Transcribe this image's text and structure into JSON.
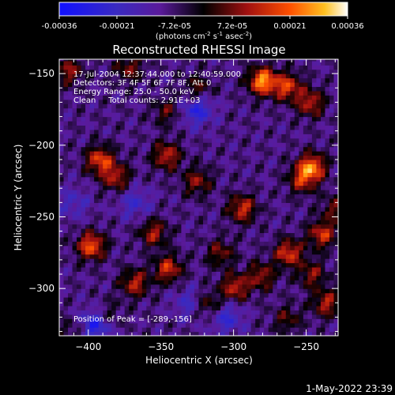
{
  "colorbar": {
    "ticks": [
      "-0.00036",
      "-0.00021",
      "-7.2e-05",
      "7.2e-05",
      "0.00021",
      "0.00036"
    ],
    "units_label": "(photons cm",
    "units_sup1": "-2",
    "units_mid": " s",
    "units_sup2": "-1",
    "units_mid2": " asec",
    "units_sup3": "-2",
    "units_end": ")"
  },
  "chart_data": {
    "type": "heatmap",
    "title": "Reconstructed RHESSI Image",
    "xlabel": "Heliocentric X (arcsec)",
    "ylabel": "Heliocentric Y (arcsec)",
    "xlim": [
      -420,
      -228
    ],
    "ylim": [
      -333,
      -140
    ],
    "xticks": [
      -400,
      -350,
      -300,
      -250
    ],
    "yticks": [
      -150,
      -200,
      -250,
      -300
    ],
    "color_range": [
      -0.00036,
      0.00036
    ],
    "colormap": "blue-purple-black-red-orange-yellow-white",
    "hot_spots": [
      {
        "x": -280,
        "y": -155,
        "v": 0.00036
      },
      {
        "x": -263,
        "y": -159,
        "v": 0.00026
      },
      {
        "x": -247,
        "y": -170,
        "v": 0.00022
      },
      {
        "x": -246,
        "y": -215,
        "v": 0.00032
      },
      {
        "x": -392,
        "y": -210,
        "v": 0.00027
      },
      {
        "x": -381,
        "y": -222,
        "v": 0.00021
      },
      {
        "x": -398,
        "y": -270,
        "v": 0.0003
      },
      {
        "x": -346,
        "y": -207,
        "v": 0.00023
      },
      {
        "x": -325,
        "y": -225,
        "v": 0.00018
      },
      {
        "x": -294,
        "y": -244,
        "v": 0.00024
      },
      {
        "x": -355,
        "y": -261,
        "v": 0.0002
      },
      {
        "x": -345,
        "y": -286,
        "v": 0.00024
      },
      {
        "x": -368,
        "y": -296,
        "v": 0.00022
      },
      {
        "x": -309,
        "y": -275,
        "v": 0.00016
      },
      {
        "x": -299,
        "y": -299,
        "v": 0.00023
      },
      {
        "x": -281,
        "y": -291,
        "v": 0.00019
      },
      {
        "x": -262,
        "y": -275,
        "v": 0.00026
      },
      {
        "x": -239,
        "y": -262,
        "v": 0.00024
      },
      {
        "x": -236,
        "y": -310,
        "v": 0.00021
      },
      {
        "x": -413,
        "y": -148,
        "v": 0.00018
      },
      {
        "x": -372,
        "y": -146,
        "v": 0.00016
      },
      {
        "x": -346,
        "y": -176,
        "v": 0.00013
      },
      {
        "x": -325,
        "y": -160,
        "v": 0.00014
      },
      {
        "x": -253,
        "y": -224,
        "v": 0.0002
      },
      {
        "x": -230,
        "y": -244,
        "v": 0.00014
      },
      {
        "x": -318,
        "y": -311,
        "v": 0.00016
      },
      {
        "x": -263,
        "y": -321,
        "v": 0.00013
      },
      {
        "x": -246,
        "y": -290,
        "v": 0.00017
      },
      {
        "x": -411,
        "y": -330,
        "v": 9e-05
      },
      {
        "x": -387,
        "y": -318,
        "v": 0.00011
      }
    ],
    "cold_spots": [
      {
        "x": -395,
        "y": -325,
        "v": -0.00022
      },
      {
        "x": -305,
        "y": -320,
        "v": -0.00015
      },
      {
        "x": -325,
        "y": -175,
        "v": -0.00018
      },
      {
        "x": -330,
        "y": -310,
        "v": -0.00012
      },
      {
        "x": -410,
        "y": -240,
        "v": -0.0001
      },
      {
        "x": -368,
        "y": -240,
        "v": -0.00012
      }
    ]
  },
  "annotations": {
    "line1": "17-Jul-2004 12:37:44.000 to 12:40:59.000",
    "line2": "Detectors: 3F 4F 5F 6F 7F 8F, Att 0",
    "line3": "Energy Range: 25.0 - 50.0 keV",
    "line4": "Clean     Total counts: 2.91E+03",
    "peak": "Position of Peak = [-289,-156]"
  },
  "footer": {
    "timestamp": "1-May-2022 23:39"
  }
}
